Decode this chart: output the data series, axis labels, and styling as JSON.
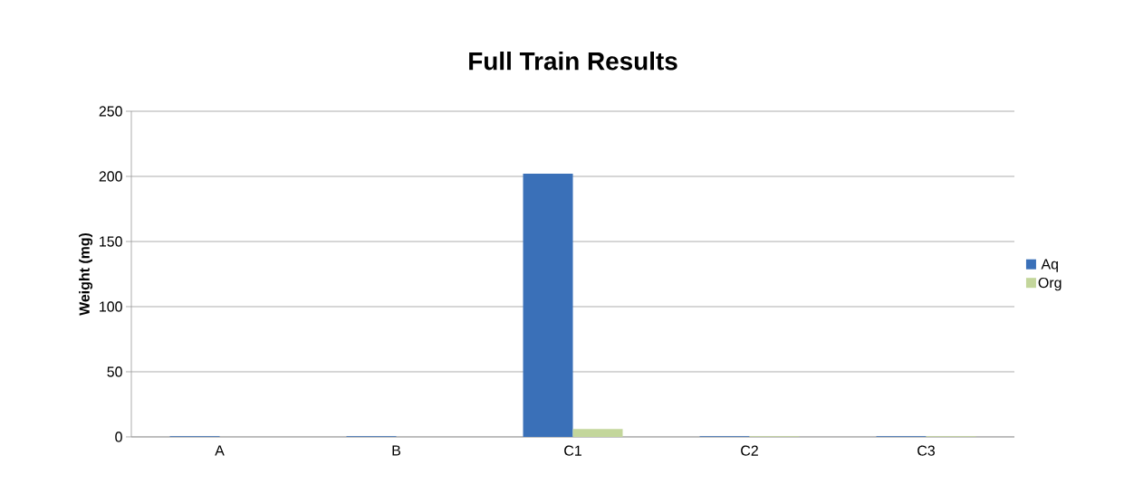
{
  "chart_data": {
    "type": "bar",
    "title": "Full Train Results",
    "ylabel": "Weight (mg)",
    "categories": [
      "A",
      "B",
      "C1",
      "C2",
      "C3"
    ],
    "series": [
      {
        "name": "Aq",
        "color": "#3a70b8",
        "values": [
          0.5,
          0.5,
          202,
          0.5,
          0.5
        ]
      },
      {
        "name": "Org",
        "color": "#c3d69b",
        "values": [
          0,
          0,
          6,
          0.5,
          0.5
        ]
      }
    ],
    "ylim": [
      0,
      250
    ],
    "yticks": [
      0,
      50,
      100,
      150,
      200,
      250
    ],
    "grid": "y",
    "legend": "right"
  }
}
